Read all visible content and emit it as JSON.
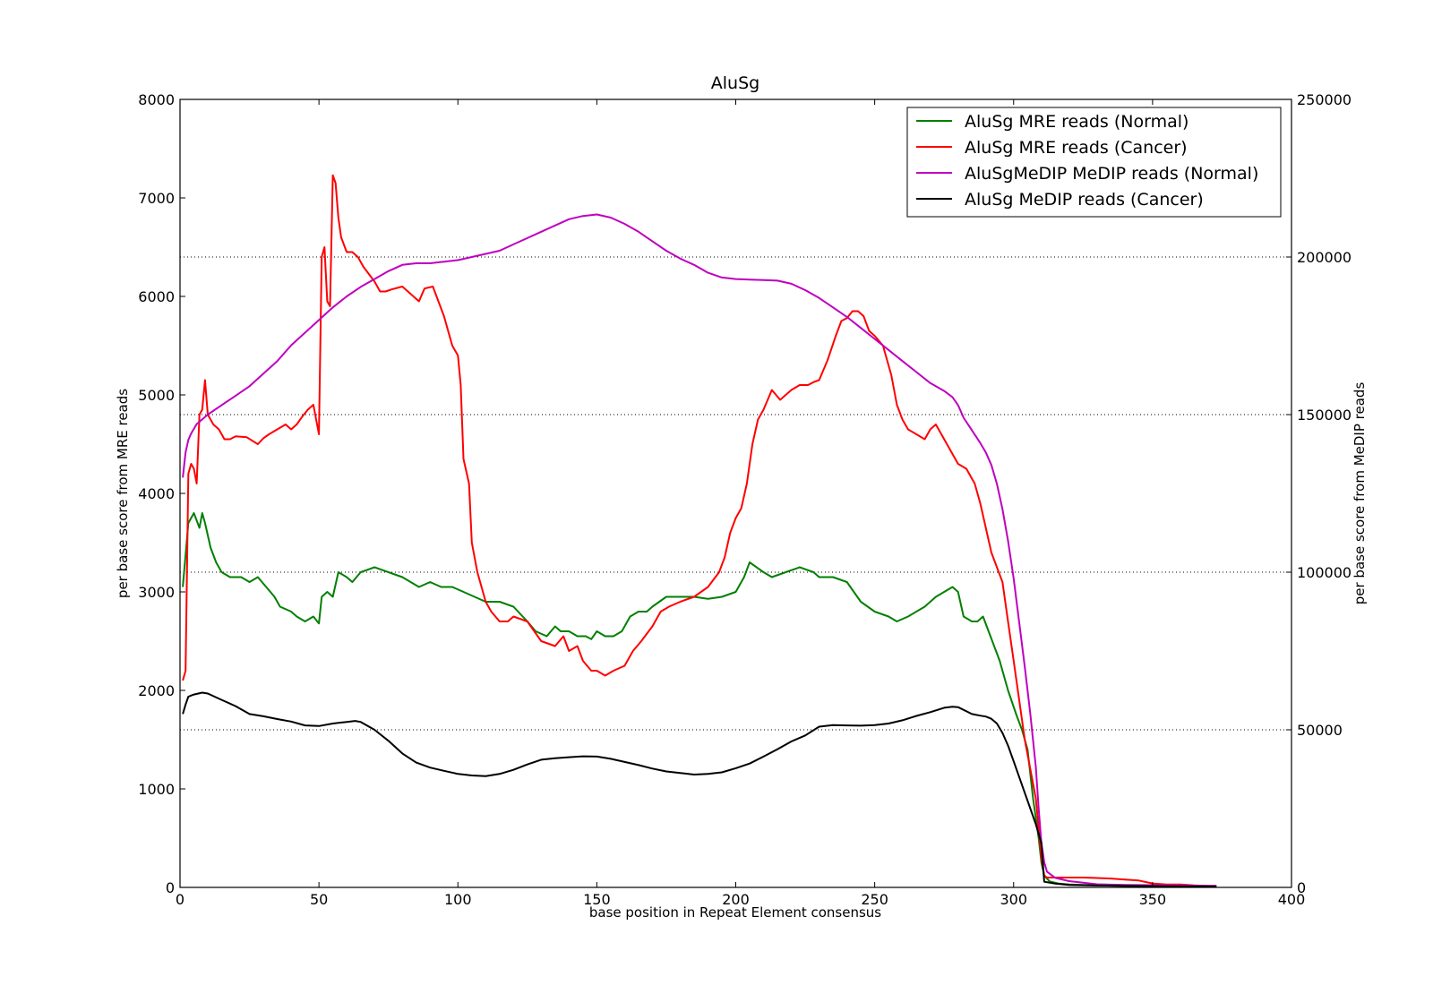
{
  "chart_data": {
    "type": "line",
    "title": "AluSg",
    "xlabel": "base position in Repeat Element consensus",
    "ylabel": "per base score from MRE reads",
    "y2label": "per base score from MeDIP reads",
    "xlim": [
      0,
      400
    ],
    "ylim": [
      0,
      8000
    ],
    "y2lim": [
      0,
      250000
    ],
    "xticks": [
      0,
      50,
      100,
      150,
      200,
      250,
      300,
      350,
      400
    ],
    "yticks": [
      0,
      1000,
      2000,
      3000,
      4000,
      5000,
      6000,
      7000,
      8000
    ],
    "y2ticks": [
      0,
      50000,
      100000,
      150000,
      200000,
      250000
    ],
    "grid": "dotted horizontal lines at right-axis ticks",
    "legend_position": "top-right",
    "series": [
      {
        "name": "AluSg MRE reads (Normal)",
        "color": "#008000",
        "axis": "left",
        "x": [
          1,
          3,
          5,
          7,
          8,
          9,
          11,
          13,
          15,
          18,
          22,
          25,
          28,
          31,
          34,
          36,
          40,
          42,
          45,
          48,
          50,
          51,
          53,
          55,
          57,
          60,
          62,
          65,
          70,
          75,
          80,
          83,
          86,
          90,
          94,
          98,
          102,
          106,
          110,
          115,
          120,
          125,
          128,
          132,
          135,
          137,
          140,
          143,
          146,
          148,
          150,
          153,
          156,
          159,
          162,
          165,
          168,
          170,
          175,
          180,
          185,
          190,
          195,
          200,
          203,
          205,
          210,
          213,
          218,
          223,
          228,
          230,
          235,
          240,
          245,
          250,
          255,
          258,
          262,
          268,
          272,
          275,
          278,
          280,
          282,
          285,
          287,
          289,
          291,
          295,
          298,
          301,
          303,
          305,
          307,
          309,
          310,
          311,
          313,
          316,
          320,
          330,
          340,
          350,
          360,
          370,
          373
        ],
        "values": [
          3050,
          3700,
          3800,
          3650,
          3800,
          3700,
          3450,
          3300,
          3200,
          3150,
          3150,
          3100,
          3150,
          3050,
          2950,
          2850,
          2800,
          2750,
          2700,
          2750,
          2680,
          2950,
          3000,
          2950,
          3200,
          3150,
          3100,
          3200,
          3250,
          3200,
          3150,
          3100,
          3050,
          3100,
          3050,
          3050,
          3000,
          2950,
          2900,
          2900,
          2850,
          2700,
          2600,
          2550,
          2650,
          2600,
          2600,
          2550,
          2550,
          2520,
          2600,
          2550,
          2550,
          2600,
          2750,
          2800,
          2800,
          2850,
          2950,
          2950,
          2950,
          2930,
          2950,
          3000,
          3150,
          3300,
          3200,
          3150,
          3200,
          3250,
          3200,
          3150,
          3150,
          3100,
          2900,
          2800,
          2750,
          2700,
          2750,
          2850,
          2950,
          3000,
          3050,
          3000,
          2750,
          2700,
          2700,
          2750,
          2600,
          2300,
          2000,
          1750,
          1600,
          1400,
          900,
          500,
          250,
          120,
          60,
          40,
          30,
          20,
          15,
          10,
          10,
          10,
          10
        ]
      },
      {
        "name": "AluSg MRE reads (Cancer)",
        "color": "#ff0000",
        "axis": "left",
        "x": [
          1,
          2,
          3,
          4,
          5,
          6,
          7,
          8,
          9,
          10,
          12,
          14,
          16,
          18,
          20,
          24,
          28,
          30,
          32,
          35,
          38,
          40,
          42,
          44,
          46,
          48,
          50,
          51,
          52,
          53,
          54,
          55,
          56,
          57,
          58,
          60,
          62,
          64,
          66,
          70,
          72,
          74,
          76,
          80,
          84,
          86,
          88,
          91,
          93,
          95,
          98,
          100,
          101,
          102,
          104,
          105,
          107,
          110,
          112,
          115,
          118,
          120,
          125,
          130,
          135,
          138,
          140,
          143,
          145,
          148,
          150,
          153,
          156,
          160,
          163,
          166,
          170,
          173,
          176,
          180,
          185,
          190,
          194,
          196,
          198,
          200,
          202,
          204,
          206,
          208,
          210,
          213,
          216,
          218,
          220,
          223,
          226,
          228,
          230,
          233,
          236,
          238,
          240,
          242,
          244,
          246,
          248,
          250,
          253,
          256,
          258,
          260,
          262,
          265,
          268,
          270,
          272,
          275,
          278,
          280,
          283,
          286,
          288,
          290,
          292,
          294,
          296,
          298,
          300,
          302,
          304,
          306,
          308,
          309,
          310,
          311,
          312,
          315,
          320,
          325,
          330,
          335,
          340,
          345,
          350,
          355,
          360,
          365,
          370,
          373
        ],
        "values": [
          2100,
          2200,
          4200,
          4300,
          4250,
          4100,
          4800,
          4850,
          5150,
          4800,
          4700,
          4650,
          4550,
          4550,
          4580,
          4570,
          4500,
          4560,
          4600,
          4650,
          4700,
          4650,
          4700,
          4780,
          4850,
          4900,
          4600,
          6400,
          6500,
          5950,
          5900,
          7230,
          7150,
          6800,
          6600,
          6450,
          6450,
          6400,
          6300,
          6150,
          6050,
          6050,
          6070,
          6100,
          6000,
          5950,
          6080,
          6100,
          5950,
          5800,
          5500,
          5400,
          5100,
          4350,
          4100,
          3500,
          3200,
          2900,
          2800,
          2700,
          2700,
          2750,
          2700,
          2500,
          2450,
          2550,
          2400,
          2450,
          2300,
          2200,
          2200,
          2150,
          2200,
          2250,
          2400,
          2500,
          2650,
          2800,
          2850,
          2900,
          2950,
          3050,
          3200,
          3350,
          3600,
          3750,
          3850,
          4100,
          4500,
          4750,
          4850,
          5050,
          4950,
          5000,
          5050,
          5100,
          5100,
          5130,
          5150,
          5350,
          5600,
          5750,
          5780,
          5850,
          5850,
          5800,
          5650,
          5600,
          5500,
          5200,
          4900,
          4750,
          4650,
          4600,
          4550,
          4650,
          4700,
          4550,
          4400,
          4300,
          4250,
          4100,
          3900,
          3650,
          3400,
          3250,
          3100,
          2700,
          2300,
          1900,
          1500,
          1200,
          900,
          600,
          300,
          120,
          100,
          100,
          100,
          100,
          95,
          90,
          80,
          70,
          40,
          30,
          30,
          20,
          15,
          15
        ]
      },
      {
        "name": "AluSgMeDIP MeDIP reads (Normal)",
        "color": "#bf00bf",
        "axis": "right",
        "x": [
          1,
          2,
          3,
          4,
          6,
          10,
          15,
          20,
          25,
          30,
          35,
          40,
          45,
          50,
          55,
          60,
          65,
          70,
          75,
          80,
          85,
          90,
          95,
          100,
          105,
          110,
          115,
          120,
          125,
          130,
          135,
          140,
          145,
          150,
          155,
          160,
          165,
          170,
          175,
          180,
          185,
          190,
          195,
          200,
          205,
          210,
          215,
          220,
          225,
          230,
          235,
          240,
          245,
          250,
          255,
          260,
          265,
          270,
          275,
          278,
          280,
          282,
          285,
          288,
          290,
          292,
          294,
          296,
          298,
          300,
          302,
          304,
          306,
          308,
          309,
          310,
          311,
          312,
          315,
          320,
          330,
          340,
          350,
          360,
          370,
          373
        ],
        "values": [
          130000,
          138000,
          142000,
          144000,
          147000,
          150000,
          153000,
          156000,
          159000,
          163000,
          167000,
          172000,
          176000,
          180000,
          184000,
          187500,
          190500,
          193000,
          195500,
          197500,
          198000,
          198000,
          198500,
          199000,
          200000,
          201000,
          202000,
          204000,
          206000,
          208000,
          210000,
          212000,
          213000,
          213500,
          212500,
          210500,
          208000,
          205000,
          202000,
          199500,
          197500,
          195000,
          193500,
          193000,
          192800,
          192700,
          192500,
          191500,
          189500,
          187000,
          184000,
          181000,
          177500,
          174000,
          170500,
          167000,
          163500,
          160000,
          157500,
          155500,
          153000,
          149000,
          145000,
          141000,
          138000,
          134000,
          128000,
          120000,
          110000,
          98000,
          84000,
          70000,
          55000,
          38000,
          25000,
          14000,
          8000,
          5000,
          3000,
          2000,
          1000,
          800,
          700,
          600,
          500,
          500
        ]
      },
      {
        "name": "AluSg MeDIP reads (Cancer)",
        "color": "#000000",
        "axis": "right",
        "x": [
          1,
          2,
          3,
          5,
          8,
          10,
          15,
          20,
          25,
          30,
          35,
          40,
          45,
          50,
          55,
          60,
          63,
          65,
          70,
          75,
          80,
          85,
          90,
          95,
          100,
          105,
          110,
          115,
          120,
          125,
          130,
          135,
          140,
          145,
          150,
          155,
          160,
          165,
          170,
          175,
          180,
          185,
          190,
          195,
          200,
          205,
          210,
          215,
          220,
          225,
          230,
          235,
          240,
          245,
          250,
          255,
          260,
          265,
          270,
          275,
          278,
          280,
          285,
          288,
          290,
          292,
          294,
          296,
          298,
          300,
          302,
          304,
          306,
          308,
          309,
          310,
          311,
          315,
          320,
          330,
          340,
          350,
          360,
          370,
          373
        ],
        "values": [
          55000,
          58000,
          60500,
          61200,
          61800,
          61500,
          59500,
          57500,
          55000,
          54300,
          53400,
          52600,
          51400,
          51200,
          52000,
          52500,
          52800,
          52500,
          50000,
          46500,
          42500,
          39600,
          38000,
          37000,
          36000,
          35500,
          35300,
          36000,
          37300,
          39000,
          40500,
          41000,
          41300,
          41600,
          41500,
          40800,
          39800,
          38800,
          37700,
          36800,
          36300,
          35800,
          36000,
          36500,
          37800,
          39300,
          41500,
          43800,
          46300,
          48200,
          51000,
          51500,
          51400,
          51300,
          51500,
          52000,
          53000,
          54400,
          55600,
          57000,
          57300,
          57200,
          55000,
          54500,
          54200,
          53500,
          52000,
          49000,
          45000,
          40000,
          35000,
          30000,
          25000,
          20000,
          17000,
          14000,
          1800,
          1200,
          800,
          600,
          500,
          400,
          300,
          300,
          300
        ]
      }
    ]
  }
}
